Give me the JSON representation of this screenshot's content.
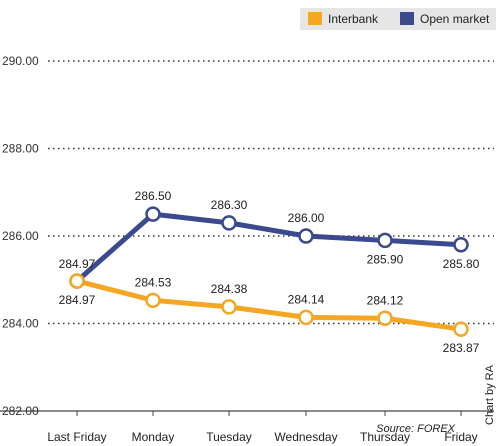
{
  "chart_data": {
    "type": "line",
    "categories": [
      "Last Friday",
      "Monday",
      "Tuesday",
      "Wednesday",
      "Thursday",
      "Friday"
    ],
    "series": [
      {
        "name": "Interbank",
        "color": "#f5a623",
        "values": [
          284.97,
          284.53,
          284.38,
          284.14,
          284.12,
          283.87
        ]
      },
      {
        "name": "Open market",
        "color": "#3b4a8e",
        "values": [
          284.97,
          286.5,
          286.3,
          286.0,
          285.9,
          285.8
        ]
      }
    ],
    "ylim": [
      282.0,
      290.0
    ],
    "yticks": [
      "282.00",
      "284.00",
      "286.00",
      "288.00",
      "290.00"
    ],
    "grid": true,
    "legend_position": "top-right",
    "source": "Source: FOREX",
    "credit": "Chart by RA"
  }
}
